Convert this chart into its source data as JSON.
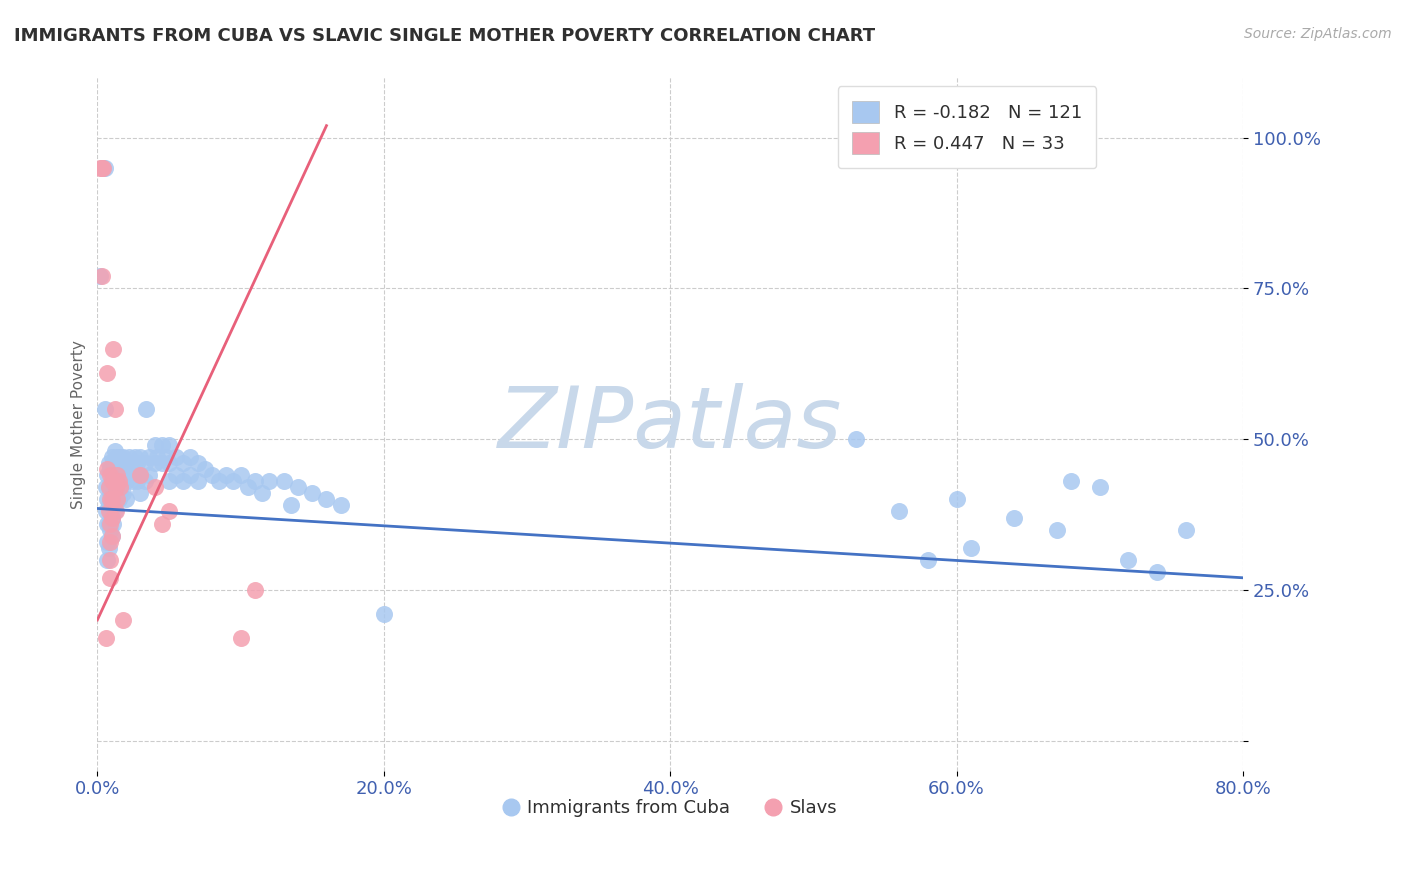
{
  "title": "IMMIGRANTS FROM CUBA VS SLAVIC SINGLE MOTHER POVERTY CORRELATION CHART",
  "source": "Source: ZipAtlas.com",
  "ylabel": "Single Mother Poverty",
  "x_label_cuba": "Immigrants from Cuba",
  "x_label_slavs": "Slavs",
  "xlim": [
    0.0,
    0.8
  ],
  "ylim": [
    -5,
    110
  ],
  "yticks": [
    0,
    25,
    50,
    75,
    100
  ],
  "ytick_labels": [
    "",
    "25.0%",
    "50.0%",
    "75.0%",
    "100.0%"
  ],
  "xticks": [
    0.0,
    0.2,
    0.4,
    0.6,
    0.8
  ],
  "xtick_labels": [
    "0.0%",
    "20.0%",
    "40.0%",
    "60.0%",
    "80.0%"
  ],
  "cuba_R": -0.182,
  "cuba_N": 121,
  "slavs_R": 0.447,
  "slavs_N": 33,
  "cuba_color": "#a8c8f0",
  "slavs_color": "#f4a0b0",
  "cuba_line_color": "#4472c4",
  "slavs_line_color": "#e8607a",
  "watermark_color": "#c8d8ea",
  "background_color": "#ffffff",
  "grid_color": "#cccccc",
  "title_color": "#303030",
  "axis_label_color": "#4060b0",
  "cuba_line": [
    [
      0.0,
      38.5
    ],
    [
      0.8,
      27.0
    ]
  ],
  "slavs_line": [
    [
      0.0,
      20.0
    ],
    [
      0.16,
      102.0
    ]
  ],
  "cuba_dots": [
    [
      0.003,
      95
    ],
    [
      0.004,
      95
    ],
    [
      0.005,
      95
    ],
    [
      0.002,
      77
    ],
    [
      0.005,
      55
    ],
    [
      0.006,
      42
    ],
    [
      0.006,
      38
    ],
    [
      0.007,
      44
    ],
    [
      0.007,
      40
    ],
    [
      0.007,
      36
    ],
    [
      0.007,
      33
    ],
    [
      0.007,
      30
    ],
    [
      0.008,
      46
    ],
    [
      0.008,
      42
    ],
    [
      0.008,
      39
    ],
    [
      0.008,
      36
    ],
    [
      0.008,
      32
    ],
    [
      0.009,
      45
    ],
    [
      0.009,
      41
    ],
    [
      0.009,
      38
    ],
    [
      0.009,
      35
    ],
    [
      0.01,
      47
    ],
    [
      0.01,
      43
    ],
    [
      0.01,
      40
    ],
    [
      0.01,
      37
    ],
    [
      0.01,
      34
    ],
    [
      0.011,
      46
    ],
    [
      0.011,
      42
    ],
    [
      0.011,
      39
    ],
    [
      0.011,
      36
    ],
    [
      0.012,
      48
    ],
    [
      0.012,
      44
    ],
    [
      0.012,
      41
    ],
    [
      0.012,
      38
    ],
    [
      0.013,
      46
    ],
    [
      0.013,
      43
    ],
    [
      0.013,
      40
    ],
    [
      0.014,
      47
    ],
    [
      0.014,
      44
    ],
    [
      0.014,
      41
    ],
    [
      0.015,
      46
    ],
    [
      0.015,
      43
    ],
    [
      0.015,
      40
    ],
    [
      0.016,
      47
    ],
    [
      0.016,
      44
    ],
    [
      0.016,
      41
    ],
    [
      0.017,
      46
    ],
    [
      0.017,
      43
    ],
    [
      0.018,
      47
    ],
    [
      0.018,
      44
    ],
    [
      0.018,
      41
    ],
    [
      0.02,
      46
    ],
    [
      0.02,
      43
    ],
    [
      0.02,
      40
    ],
    [
      0.022,
      47
    ],
    [
      0.022,
      44
    ],
    [
      0.024,
      46
    ],
    [
      0.024,
      43
    ],
    [
      0.026,
      47
    ],
    [
      0.026,
      44
    ],
    [
      0.028,
      46
    ],
    [
      0.028,
      43
    ],
    [
      0.03,
      47
    ],
    [
      0.03,
      44
    ],
    [
      0.03,
      41
    ],
    [
      0.033,
      46
    ],
    [
      0.033,
      43
    ],
    [
      0.034,
      55
    ],
    [
      0.036,
      47
    ],
    [
      0.036,
      44
    ],
    [
      0.04,
      49
    ],
    [
      0.04,
      46
    ],
    [
      0.042,
      47
    ],
    [
      0.045,
      49
    ],
    [
      0.045,
      46
    ],
    [
      0.048,
      47
    ],
    [
      0.05,
      49
    ],
    [
      0.05,
      46
    ],
    [
      0.05,
      43
    ],
    [
      0.055,
      47
    ],
    [
      0.055,
      44
    ],
    [
      0.06,
      46
    ],
    [
      0.06,
      43
    ],
    [
      0.065,
      47
    ],
    [
      0.065,
      44
    ],
    [
      0.07,
      46
    ],
    [
      0.07,
      43
    ],
    [
      0.075,
      45
    ],
    [
      0.08,
      44
    ],
    [
      0.085,
      43
    ],
    [
      0.09,
      44
    ],
    [
      0.095,
      43
    ],
    [
      0.1,
      44
    ],
    [
      0.105,
      42
    ],
    [
      0.11,
      43
    ],
    [
      0.115,
      41
    ],
    [
      0.12,
      43
    ],
    [
      0.13,
      43
    ],
    [
      0.135,
      39
    ],
    [
      0.14,
      42
    ],
    [
      0.15,
      41
    ],
    [
      0.16,
      40
    ],
    [
      0.17,
      39
    ],
    [
      0.2,
      21
    ],
    [
      0.53,
      50
    ],
    [
      0.56,
      38
    ],
    [
      0.58,
      30
    ],
    [
      0.6,
      40
    ],
    [
      0.61,
      32
    ],
    [
      0.64,
      37
    ],
    [
      0.67,
      35
    ],
    [
      0.68,
      43
    ],
    [
      0.7,
      42
    ],
    [
      0.72,
      30
    ],
    [
      0.74,
      28
    ],
    [
      0.76,
      35
    ]
  ],
  "slavs_dots": [
    [
      0.002,
      95
    ],
    [
      0.003,
      95
    ],
    [
      0.004,
      95
    ],
    [
      0.003,
      77
    ],
    [
      0.006,
      17
    ],
    [
      0.007,
      45
    ],
    [
      0.007,
      61
    ],
    [
      0.008,
      42
    ],
    [
      0.008,
      38
    ],
    [
      0.009,
      44
    ],
    [
      0.009,
      40
    ],
    [
      0.009,
      36
    ],
    [
      0.009,
      33
    ],
    [
      0.009,
      30
    ],
    [
      0.009,
      27
    ],
    [
      0.01,
      43
    ],
    [
      0.01,
      40
    ],
    [
      0.01,
      37
    ],
    [
      0.01,
      34
    ],
    [
      0.011,
      65
    ],
    [
      0.012,
      55
    ],
    [
      0.013,
      42
    ],
    [
      0.013,
      38
    ],
    [
      0.014,
      44
    ],
    [
      0.014,
      40
    ],
    [
      0.015,
      43
    ],
    [
      0.016,
      42
    ],
    [
      0.018,
      20
    ],
    [
      0.03,
      44
    ],
    [
      0.04,
      42
    ],
    [
      0.045,
      36
    ],
    [
      0.05,
      38
    ],
    [
      0.1,
      17
    ],
    [
      0.11,
      25
    ]
  ]
}
